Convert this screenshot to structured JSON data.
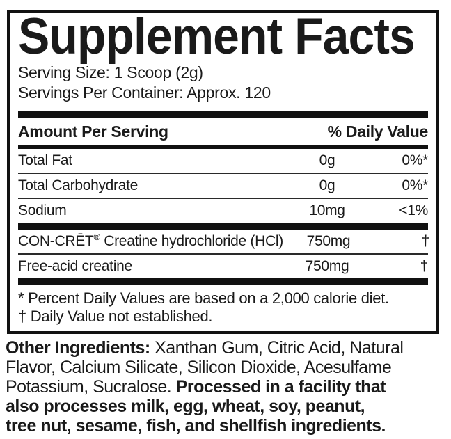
{
  "colors": {
    "text": "#1a1a1a",
    "line": "#111111",
    "background": "#ffffff"
  },
  "panel": {
    "title": "Supplement Facts",
    "serving_size": "Serving Size: 1 Scoop (2g)",
    "servings_per_container": "Servings Per Container: Approx. 120",
    "header": {
      "amount_per_serving": "Amount Per Serving",
      "percent_daily_value": "% Daily Value"
    },
    "rows": [
      {
        "name": "Total Fat",
        "amount": "0g",
        "daily_value": "0%*"
      },
      {
        "name": "Total Carbohydrate",
        "amount": "0g",
        "daily_value": "0%*"
      },
      {
        "name": "Sodium",
        "amount": "10mg",
        "daily_value": "<1%"
      },
      {
        "name_pre": "CON-CRĒT",
        "name_sup": "®",
        "name_post": " Creatine hydrochloride (HCl)",
        "amount": "750mg",
        "daily_value": "†"
      },
      {
        "name": "Free-acid creatine",
        "amount": "750mg",
        "daily_value": "†"
      }
    ],
    "footnotes": [
      "* Percent Daily Values are based on a 2,000 calorie diet.",
      "† Daily Value not established."
    ]
  },
  "other_ingredients": {
    "line1_bold": "Other Ingredients:",
    "line1_regular": " Xanthan Gum, Citric Acid, Natural",
    "line2_regular": "Flavor, Calcium Silicate, Silicon Dioxide, Acesulfame",
    "line3_regular": "Potassium, Sucralose. ",
    "line3_bold": "Processed in a facility that",
    "line4_bold": "also processes milk, egg, wheat, soy, peanut,",
    "line5_bold": "tree nut, sesame, fish, and shellfish ingredients."
  }
}
